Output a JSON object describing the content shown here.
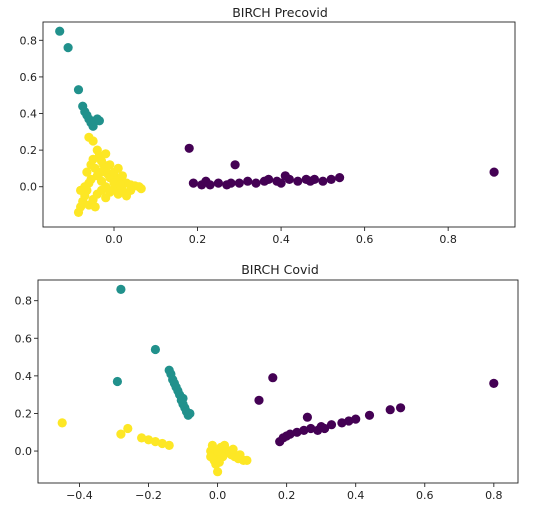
{
  "colors": {
    "purple": "#440154",
    "teal": "#21918c",
    "yellow": "#fde725"
  },
  "chart_data": [
    {
      "type": "scatter",
      "title": "BIRCH Precovid",
      "xlim": [
        -0.17,
        0.96
      ],
      "ylim": [
        -0.22,
        0.9
      ],
      "xticks": [
        -0.0,
        0.2,
        0.4,
        0.6,
        0.8
      ],
      "xtick_labels": [
        "0.0",
        "0.2",
        "0.4",
        "0.6",
        "0.8"
      ],
      "yticks": [
        0.0,
        0.2,
        0.4,
        0.6,
        0.8
      ],
      "ytick_labels": [
        "0.0",
        "0.2",
        "0.4",
        "0.6",
        "0.8"
      ],
      "grid": false,
      "series": [
        {
          "color": "purple",
          "points": [
            [
              0.18,
              0.21
            ],
            [
              0.29,
              0.12
            ],
            [
              0.19,
              0.02
            ],
            [
              0.21,
              0.01
            ],
            [
              0.22,
              0.03
            ],
            [
              0.23,
              0.01
            ],
            [
              0.25,
              0.02
            ],
            [
              0.27,
              0.01
            ],
            [
              0.28,
              0.02
            ],
            [
              0.3,
              0.02
            ],
            [
              0.32,
              0.03
            ],
            [
              0.34,
              0.02
            ],
            [
              0.36,
              0.03
            ],
            [
              0.37,
              0.04
            ],
            [
              0.39,
              0.03
            ],
            [
              0.4,
              0.02
            ],
            [
              0.41,
              0.06
            ],
            [
              0.42,
              0.04
            ],
            [
              0.44,
              0.03
            ],
            [
              0.46,
              0.04
            ],
            [
              0.47,
              0.03
            ],
            [
              0.48,
              0.04
            ],
            [
              0.5,
              0.03
            ],
            [
              0.52,
              0.04
            ],
            [
              0.54,
              0.05
            ],
            [
              0.91,
              0.08
            ]
          ]
        },
        {
          "color": "teal",
          "points": [
            [
              -0.13,
              0.85
            ],
            [
              -0.11,
              0.76
            ],
            [
              -0.085,
              0.53
            ],
            [
              -0.075,
              0.44
            ],
            [
              -0.07,
              0.41
            ],
            [
              -0.065,
              0.39
            ],
            [
              -0.06,
              0.37
            ],
            [
              -0.055,
              0.35
            ],
            [
              -0.05,
              0.33
            ],
            [
              -0.045,
              0.36
            ],
            [
              -0.04,
              0.37
            ],
            [
              -0.035,
              0.36
            ]
          ]
        },
        {
          "color": "yellow",
          "points": [
            [
              -0.06,
              0.27
            ],
            [
              -0.05,
              0.25
            ],
            [
              -0.04,
              0.2
            ],
            [
              -0.035,
              0.17
            ],
            [
              -0.05,
              0.15
            ],
            [
              -0.03,
              0.14
            ],
            [
              -0.025,
              0.12
            ],
            [
              -0.02,
              0.1
            ],
            [
              -0.03,
              0.08
            ],
            [
              -0.04,
              0.06
            ],
            [
              -0.015,
              0.07
            ],
            [
              -0.01,
              0.05
            ],
            [
              0.0,
              0.06
            ],
            [
              0.01,
              0.04
            ],
            [
              0.02,
              0.03
            ],
            [
              0.03,
              0.02
            ],
            [
              0.04,
              0.01
            ],
            [
              0.05,
              0.005
            ],
            [
              0.06,
              0.0
            ],
            [
              0.065,
              -0.01
            ],
            [
              -0.06,
              0.02
            ],
            [
              -0.07,
              0.0
            ],
            [
              -0.065,
              -0.02
            ],
            [
              -0.07,
              -0.05
            ],
            [
              -0.075,
              -0.08
            ],
            [
              -0.08,
              -0.11
            ],
            [
              -0.085,
              -0.14
            ],
            [
              -0.06,
              -0.1
            ],
            [
              -0.05,
              -0.07
            ],
            [
              -0.04,
              -0.04
            ],
            [
              -0.03,
              -0.02
            ],
            [
              -0.02,
              0.0
            ],
            [
              -0.01,
              -0.03
            ],
            [
              0.0,
              -0.01
            ],
            [
              0.01,
              -0.04
            ],
            [
              0.02,
              -0.02
            ],
            [
              0.03,
              -0.05
            ],
            [
              -0.02,
              -0.06
            ],
            [
              -0.045,
              0.1
            ],
            [
              -0.055,
              0.12
            ],
            [
              -0.02,
              0.18
            ],
            [
              0.0,
              0.08
            ],
            [
              0.01,
              0.1
            ],
            [
              -0.03,
              0.03
            ],
            [
              0.04,
              -0.02
            ],
            [
              0.0,
              0.02
            ],
            [
              -0.01,
              0.12
            ],
            [
              -0.055,
              0.04
            ],
            [
              0.02,
              0.06
            ],
            [
              -0.08,
              -0.02
            ],
            [
              -0.065,
              0.08
            ],
            [
              -0.045,
              -0.11
            ],
            [
              0.015,
              0.01
            ]
          ]
        }
      ]
    },
    {
      "type": "scatter",
      "title": "BIRCH Covid",
      "xlim": [
        -0.52,
        0.87
      ],
      "ylim": [
        -0.17,
        0.91
      ],
      "xticks": [
        -0.4,
        -0.2,
        0.0,
        0.2,
        0.4,
        0.6,
        0.8
      ],
      "xtick_labels": [
        "−0.4",
        "−0.2",
        "0.0",
        "0.2",
        "0.4",
        "0.6",
        "0.8"
      ],
      "yticks": [
        0.0,
        0.2,
        0.4,
        0.6,
        0.8
      ],
      "ytick_labels": [
        "0.0",
        "0.2",
        "0.4",
        "0.6",
        "0.8"
      ],
      "grid": false,
      "series": [
        {
          "color": "purple",
          "points": [
            [
              0.16,
              0.39
            ],
            [
              0.12,
              0.27
            ],
            [
              0.8,
              0.36
            ],
            [
              0.26,
              0.18
            ],
            [
              0.18,
              0.05
            ],
            [
              0.19,
              0.07
            ],
            [
              0.2,
              0.08
            ],
            [
              0.21,
              0.09
            ],
            [
              0.23,
              0.1
            ],
            [
              0.25,
              0.11
            ],
            [
              0.27,
              0.12
            ],
            [
              0.29,
              0.11
            ],
            [
              0.3,
              0.13
            ],
            [
              0.33,
              0.14
            ],
            [
              0.36,
              0.15
            ],
            [
              0.38,
              0.16
            ],
            [
              0.4,
              0.17
            ],
            [
              0.44,
              0.19
            ],
            [
              0.5,
              0.22
            ],
            [
              0.53,
              0.23
            ],
            [
              0.31,
              0.12
            ]
          ]
        },
        {
          "color": "teal",
          "points": [
            [
              -0.28,
              0.86
            ],
            [
              -0.18,
              0.54
            ],
            [
              -0.29,
              0.37
            ],
            [
              -0.14,
              0.43
            ],
            [
              -0.135,
              0.41
            ],
            [
              -0.13,
              0.38
            ],
            [
              -0.125,
              0.36
            ],
            [
              -0.12,
              0.34
            ],
            [
              -0.115,
              0.32
            ],
            [
              -0.11,
              0.3
            ],
            [
              -0.105,
              0.27
            ],
            [
              -0.1,
              0.25
            ],
            [
              -0.095,
              0.23
            ],
            [
              -0.09,
              0.21
            ],
            [
              -0.085,
              0.19
            ],
            [
              -0.08,
              0.2
            ],
            [
              -0.1,
              0.28
            ]
          ]
        },
        {
          "color": "yellow",
          "points": [
            [
              -0.45,
              0.15
            ],
            [
              -0.26,
              0.12
            ],
            [
              -0.28,
              0.09
            ],
            [
              -0.22,
              0.07
            ],
            [
              -0.2,
              0.06
            ],
            [
              -0.18,
              0.05
            ],
            [
              -0.16,
              0.04
            ],
            [
              -0.14,
              0.03
            ],
            [
              -0.02,
              0.0
            ],
            [
              -0.01,
              -0.02
            ],
            [
              0.0,
              -0.04
            ],
            [
              -0.005,
              -0.07
            ],
            [
              0.0,
              -0.11
            ],
            [
              0.01,
              0.02
            ],
            [
              0.02,
              0.01
            ],
            [
              0.03,
              -0.01
            ],
            [
              0.04,
              -0.02
            ],
            [
              0.05,
              -0.03
            ],
            [
              0.06,
              -0.04
            ],
            [
              0.075,
              -0.05
            ],
            [
              0.085,
              -0.05
            ],
            [
              -0.015,
              0.03
            ],
            [
              0.02,
              0.03
            ],
            [
              -0.01,
              -0.05
            ],
            [
              0.015,
              -0.03
            ],
            [
              0.035,
              0.0
            ],
            [
              0.005,
              -0.06
            ],
            [
              -0.02,
              -0.03
            ],
            [
              0.045,
              0.01
            ],
            [
              0.0,
              0.0
            ],
            [
              0.065,
              -0.02
            ]
          ]
        }
      ]
    }
  ]
}
